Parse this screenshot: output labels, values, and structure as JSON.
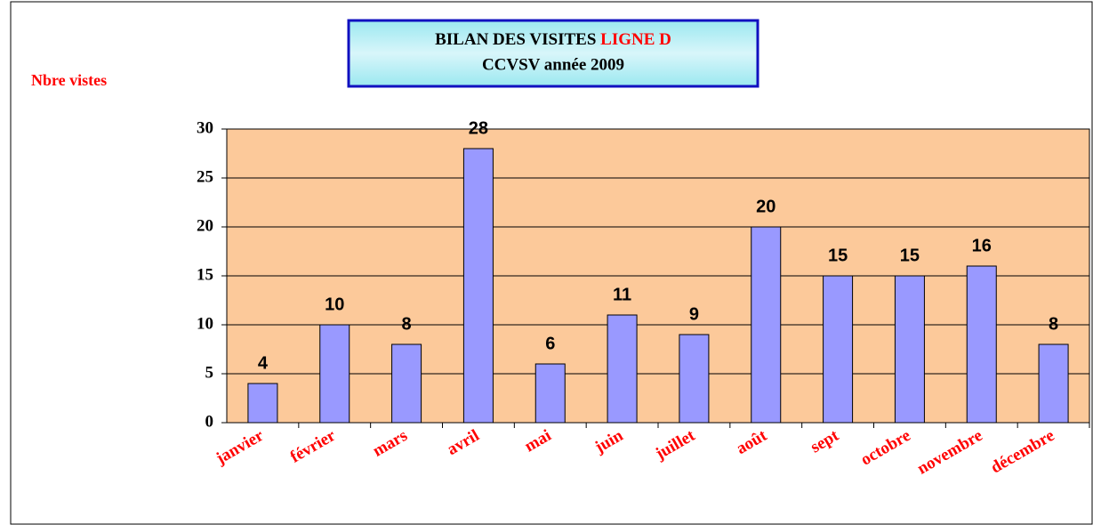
{
  "chart_data": {
    "type": "bar",
    "title": [
      "BILAN DES VISITES",
      "LIGNE D"
    ],
    "subtitle": "CCVSV année 2009",
    "y_label": "Nbre vistes",
    "categories": [
      "janvier",
      "février",
      "mars",
      "avril",
      "mai",
      "juin",
      "juillet",
      "août",
      "sept",
      "octobre",
      "novembre",
      "décembre"
    ],
    "values": [
      4,
      10,
      8,
      28,
      6,
      11,
      9,
      20,
      15,
      15,
      16,
      8
    ],
    "color": "#9999ff",
    "ylim": [
      0,
      30
    ],
    "yticks": [
      0,
      5,
      10,
      15,
      20,
      25,
      30
    ],
    "grid": true
  }
}
